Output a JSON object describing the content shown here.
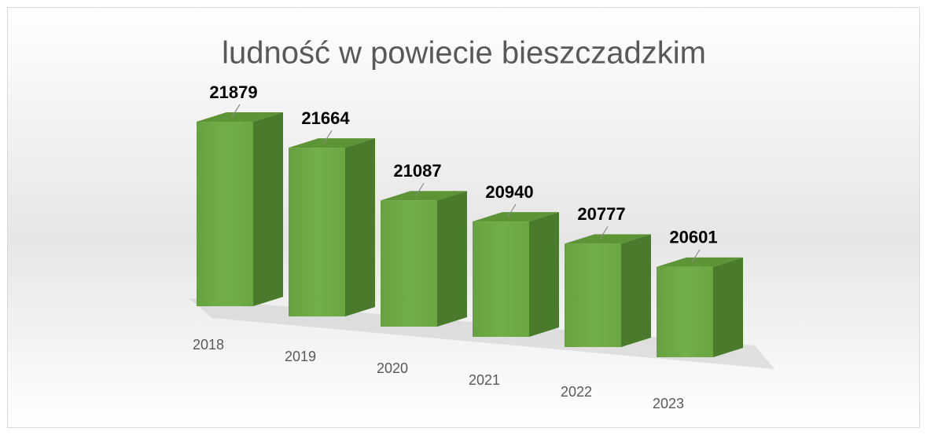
{
  "chart_data": {
    "type": "bar3d",
    "title": "ludność w powiecie bieszczadzkim",
    "categories": [
      "2018",
      "2019",
      "2020",
      "2021",
      "2022",
      "2023"
    ],
    "values": [
      21879,
      21664,
      21087,
      20940,
      20777,
      20601
    ],
    "color": "#70ad47"
  }
}
